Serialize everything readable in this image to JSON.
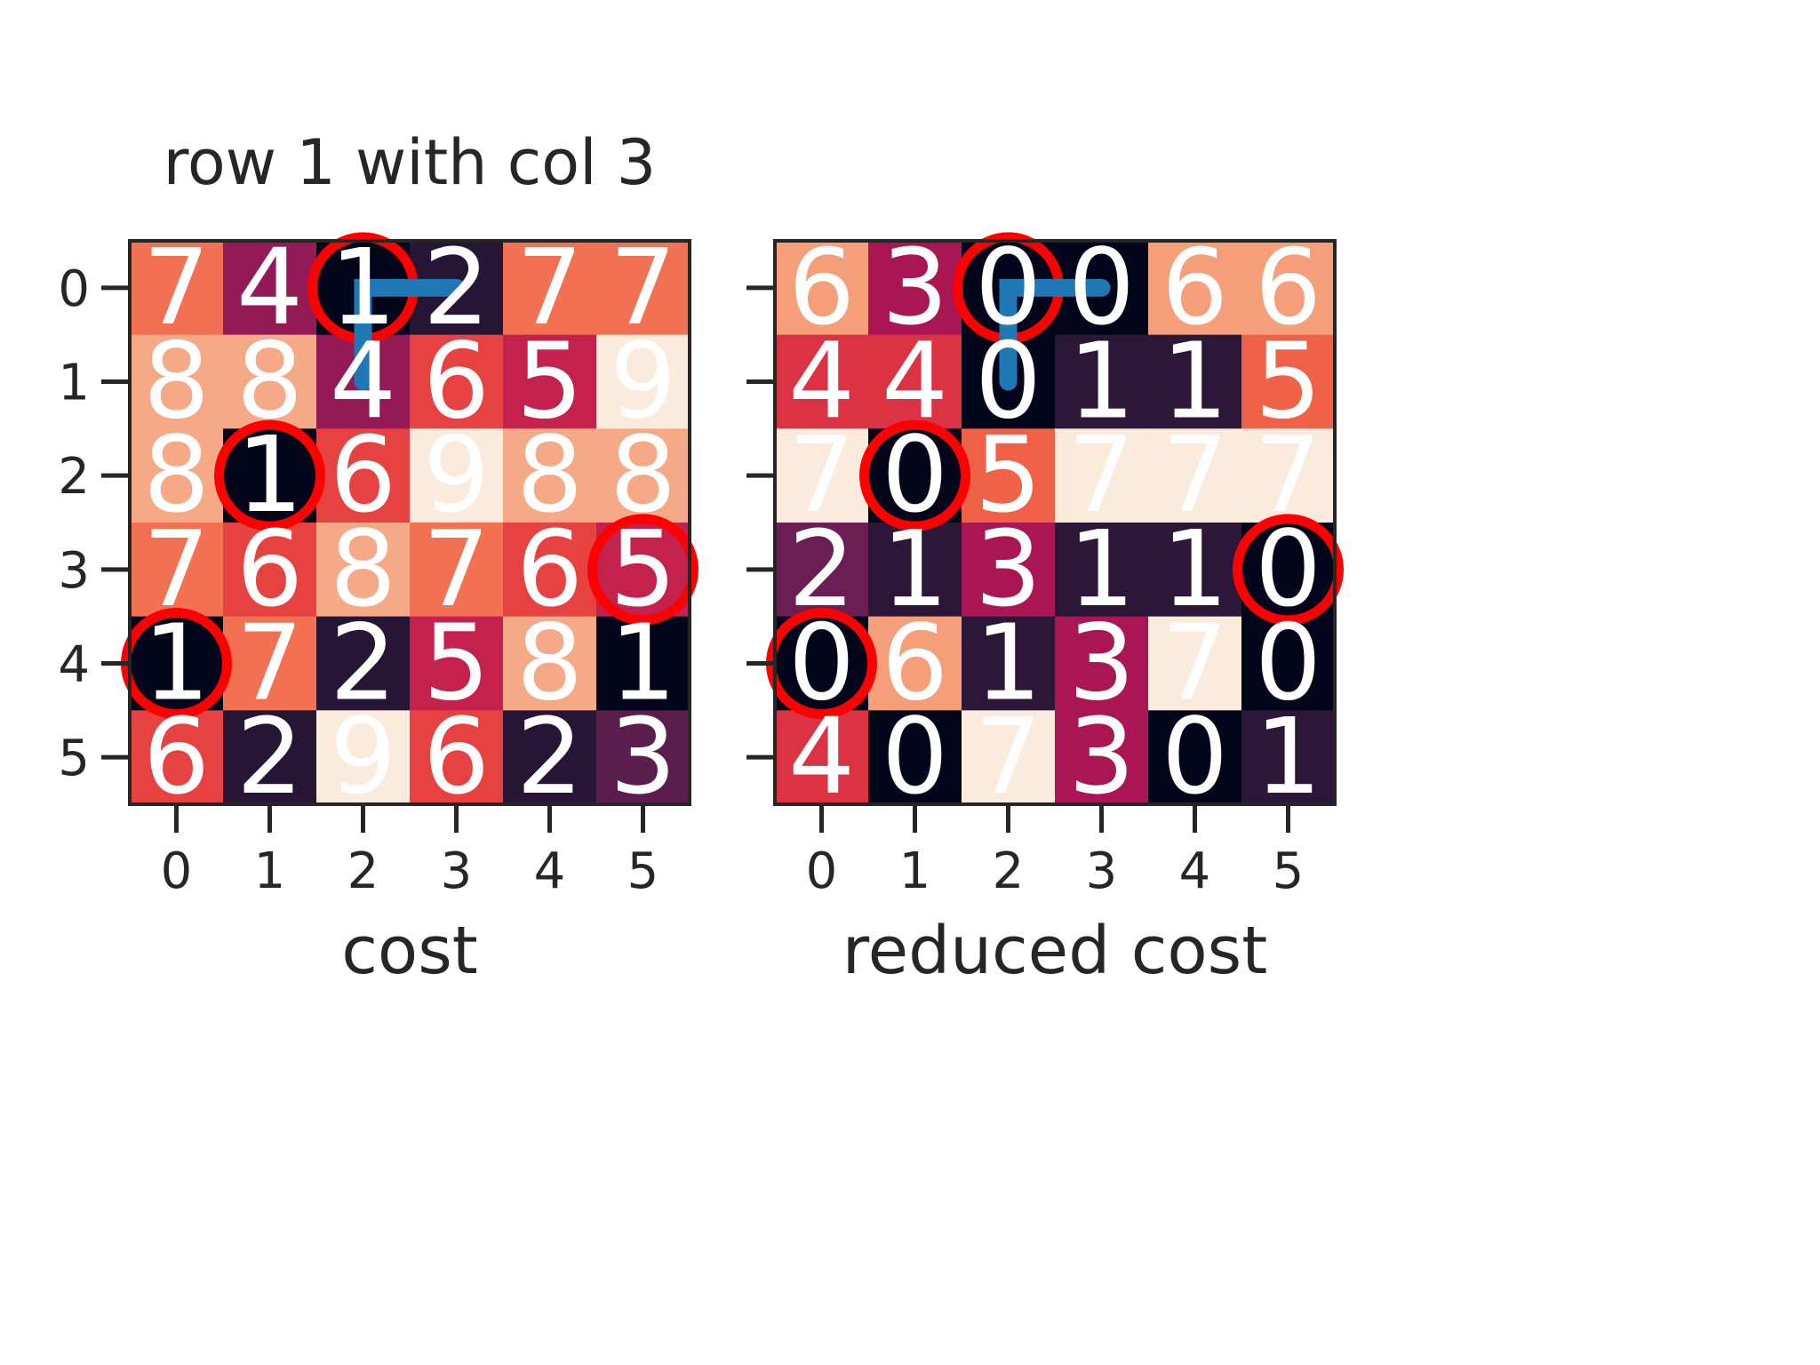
{
  "chart_data": [
    {
      "type": "heatmap",
      "title": "row 1 with col 3",
      "xlabel": "cost",
      "ylabel": "",
      "x_ticks": [
        "0",
        "1",
        "2",
        "3",
        "4",
        "5"
      ],
      "y_ticks": [
        "0",
        "1",
        "2",
        "3",
        "4",
        "5"
      ],
      "matrix": [
        [
          7,
          4,
          1,
          2,
          7,
          7
        ],
        [
          8,
          8,
          4,
          6,
          5,
          9
        ],
        [
          8,
          1,
          6,
          9,
          8,
          8
        ],
        [
          7,
          6,
          8,
          7,
          6,
          5
        ],
        [
          1,
          7,
          2,
          5,
          8,
          1
        ],
        [
          6,
          2,
          9,
          6,
          2,
          3
        ]
      ],
      "color_range": [
        1,
        9
      ],
      "circled_cells": [
        [
          0,
          2
        ],
        [
          2,
          1
        ],
        [
          3,
          5
        ],
        [
          4,
          0
        ]
      ],
      "path": [
        [
          1,
          2
        ],
        [
          0,
          2
        ],
        [
          0,
          3
        ]
      ]
    },
    {
      "type": "heatmap",
      "title": "",
      "xlabel": "reduced cost",
      "ylabel": "",
      "x_ticks": [
        "0",
        "1",
        "2",
        "3",
        "4",
        "5"
      ],
      "y_ticks": [],
      "matrix": [
        [
          6,
          3,
          0,
          0,
          6,
          6
        ],
        [
          4,
          4,
          0,
          1,
          1,
          5
        ],
        [
          7,
          0,
          5,
          7,
          7,
          7
        ],
        [
          2,
          1,
          3,
          1,
          1,
          0
        ],
        [
          0,
          6,
          1,
          3,
          7,
          0
        ],
        [
          4,
          0,
          7,
          3,
          0,
          1
        ]
      ],
      "color_range": [
        0,
        7
      ],
      "circled_cells": [
        [
          0,
          2
        ],
        [
          2,
          1
        ],
        [
          3,
          5
        ],
        [
          4,
          0
        ]
      ],
      "path": [
        [
          1,
          2
        ],
        [
          0,
          2
        ],
        [
          0,
          3
        ]
      ]
    }
  ],
  "colors": {
    "circle": "#ff0000",
    "path": "#1f77b4",
    "frame": "#262626",
    "cell_text": "#ffffff"
  }
}
